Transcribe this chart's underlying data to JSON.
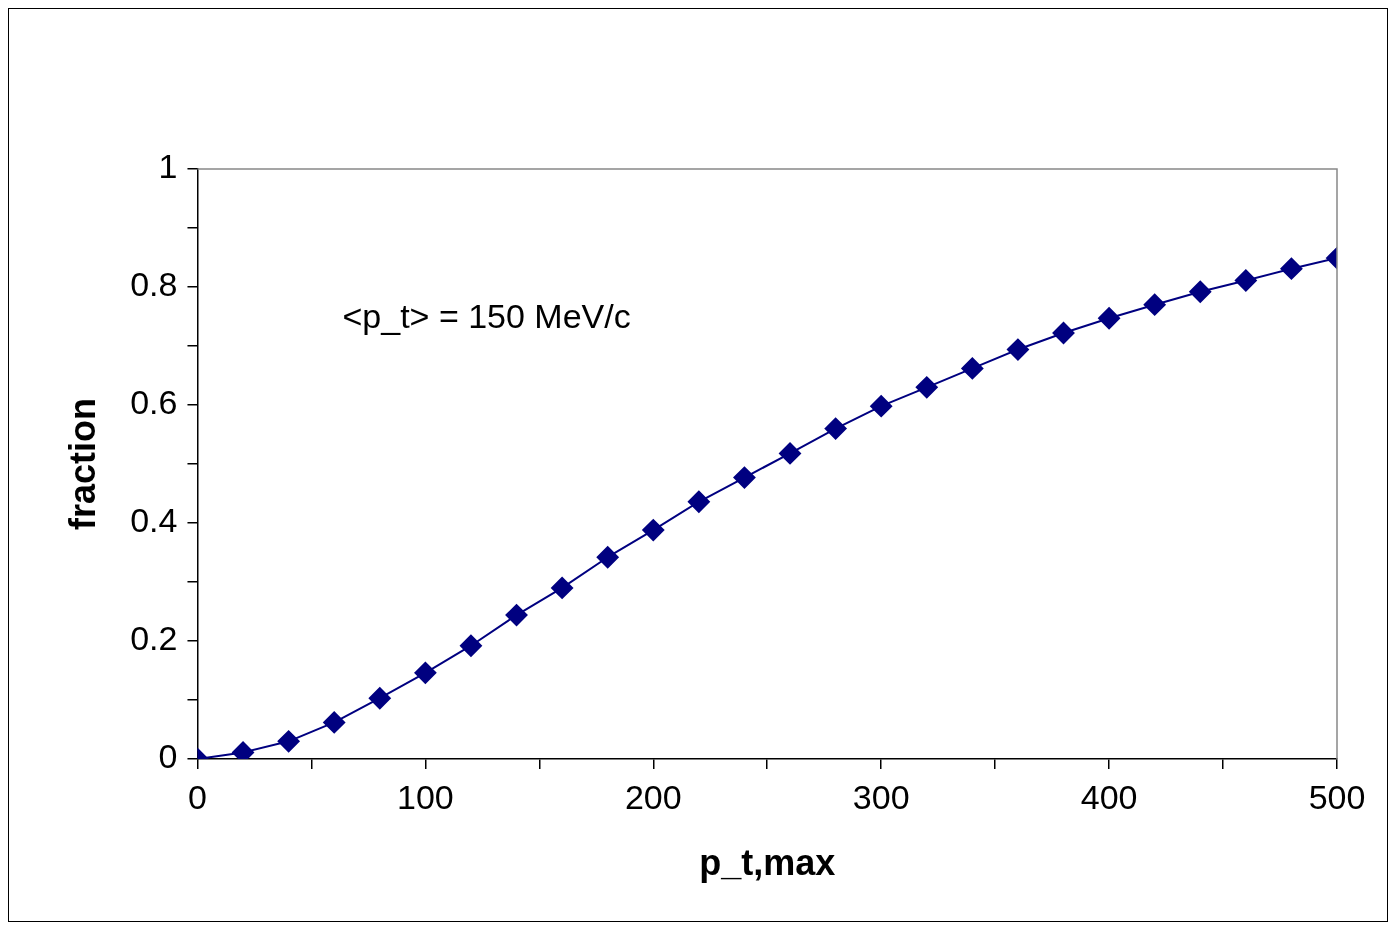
{
  "chart_data": {
    "type": "line",
    "xlabel": "p_t,max",
    "ylabel": "fraction",
    "annotations": [
      "<p_t> = 150 MeV/c"
    ],
    "x": [
      0,
      20,
      40,
      60,
      80,
      100,
      120,
      140,
      160,
      180,
      200,
      220,
      240,
      260,
      280,
      300,
      320,
      340,
      360,
      380,
      400,
      420,
      440,
      460,
      480,
      500
    ],
    "series": [
      {
        "color": "#000080",
        "values": [
          0,
          0.011,
          0.03,
          0.062,
          0.103,
          0.146,
          0.192,
          0.244,
          0.29,
          0.342,
          0.388,
          0.436,
          0.477,
          0.518,
          0.56,
          0.598,
          0.63,
          0.662,
          0.694,
          0.722,
          0.747,
          0.77,
          0.792,
          0.811,
          0.831,
          0.849
        ]
      }
    ],
    "xlim": [
      0,
      500
    ],
    "xticks": [
      0,
      {
        "value": 50,
        "label": null
      },
      100,
      {
        "value": 150,
        "label": null
      },
      200,
      {
        "value": 250,
        "label": null
      },
      300,
      {
        "value": 350,
        "label": null
      },
      400,
      {
        "value": 450,
        "label": null
      },
      500
    ],
    "ylim": [
      0,
      1
    ],
    "yticks": [
      0,
      {
        "value": 0.1,
        "label": null
      },
      0.2,
      {
        "value": 0.3,
        "label": null
      },
      0.4,
      {
        "value": 0.5,
        "label": null
      },
      0.6,
      {
        "value": 0.7,
        "label": null
      },
      0.8,
      {
        "value": 0.9,
        "label": null
      },
      1
    ],
    "grid": false,
    "legend": false,
    "marker": "diamond",
    "line_style": "solid"
  }
}
